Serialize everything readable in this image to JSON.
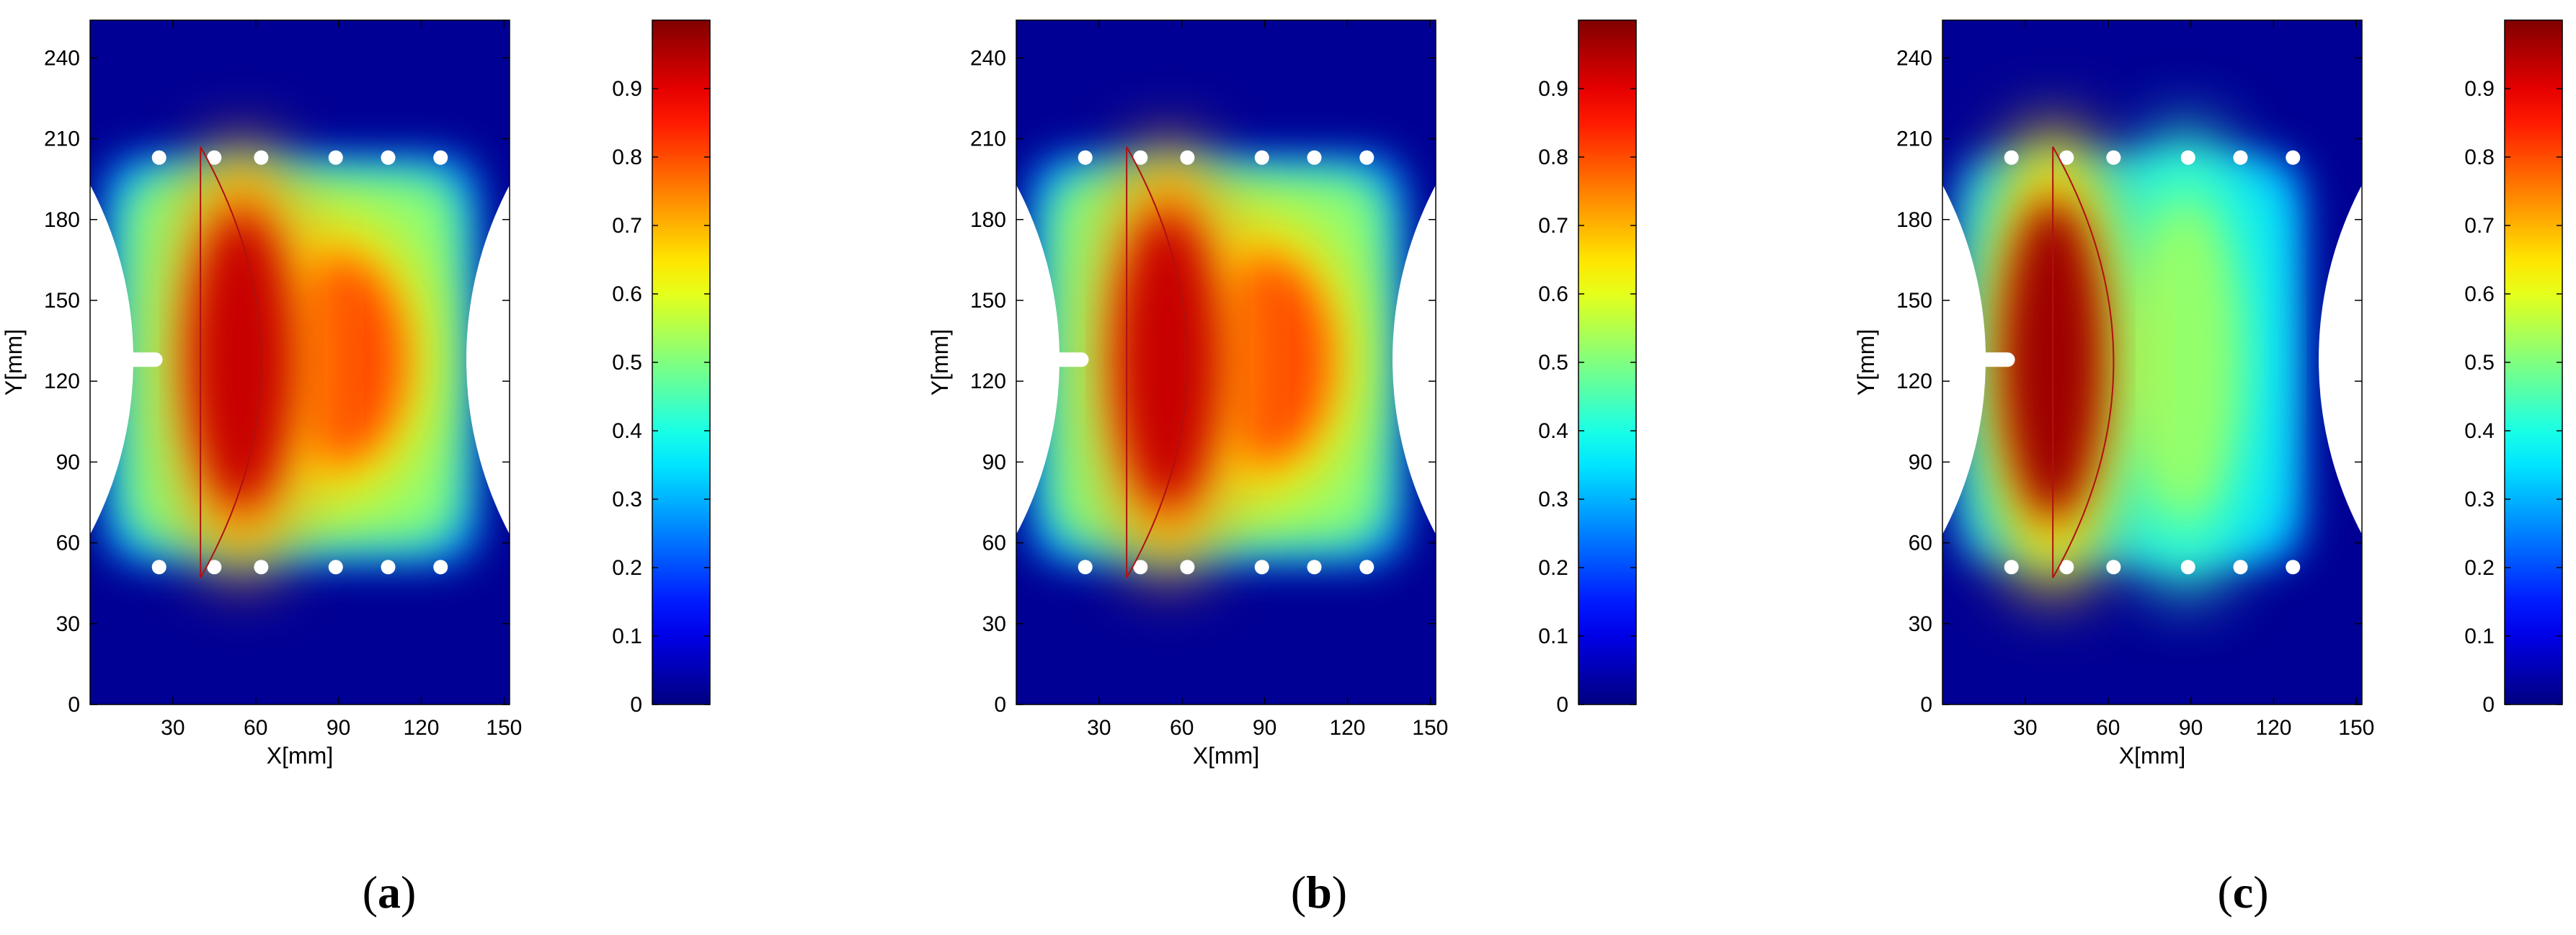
{
  "figure": {
    "panels": [
      {
        "label": "a",
        "chart_data": {
          "type": "heatmap",
          "xlabel": "X[mm]",
          "ylabel": "Y[mm]",
          "xlim": [
            0,
            152
          ],
          "ylim": [
            0,
            254
          ],
          "xticks": [
            30,
            60,
            90,
            120,
            150
          ],
          "yticks": [
            0,
            30,
            60,
            90,
            120,
            150,
            180,
            210,
            240
          ],
          "colorbar": {
            "range": [
              0,
              1
            ],
            "ticks": [
              0,
              0.1,
              0.2,
              0.3,
              0.4,
              0.5,
              0.6,
              0.7,
              0.8,
              0.9
            ],
            "tick_labels": [
              "0",
              "0.1",
              "0.2",
              "0.3",
              "0.4",
              "0.5",
              "0.6",
              "0.7",
              "0.8",
              "0.9"
            ],
            "colormap": "jet"
          },
          "field": {
            "background_value": 0.02,
            "region": {
              "x": [
                8,
                138
              ],
              "y": [
                55,
                201
              ],
              "value": 0.5
            },
            "hotspots": [
              {
                "x": 55,
                "y": 128,
                "rx": 22,
                "ry": 65,
                "value": 0.93
              },
              {
                "x": 90,
                "y": 128,
                "rx": 28,
                "ry": 45,
                "value": 0.8
              }
            ]
          },
          "notch": {
            "x": [
              0,
              35
            ],
            "y": 128
          },
          "bolt_holes_y": [
            51,
            203
          ],
          "bolt_holes_x": [
            25,
            45,
            62,
            89,
            108,
            127
          ],
          "crack_front": {
            "x_start": 40,
            "x_apex": 62,
            "y_range": [
              47,
              207
            ]
          }
        }
      },
      {
        "label": "b",
        "chart_data": {
          "type": "heatmap",
          "xlabel": "X[mm]",
          "ylabel": "Y[mm]",
          "xlim": [
            0,
            152
          ],
          "ylim": [
            0,
            254
          ],
          "xticks": [
            30,
            60,
            90,
            120,
            150
          ],
          "yticks": [
            0,
            30,
            60,
            90,
            120,
            150,
            180,
            210,
            240
          ],
          "colorbar": {
            "range": [
              0,
              1
            ],
            "ticks": [
              0,
              0.1,
              0.2,
              0.3,
              0.4,
              0.5,
              0.6,
              0.7,
              0.8,
              0.9
            ],
            "tick_labels": [
              "0",
              "0.1",
              "0.2",
              "0.3",
              "0.4",
              "0.5",
              "0.6",
              "0.7",
              "0.8",
              "0.9"
            ],
            "colormap": "jet"
          },
          "field": {
            "background_value": 0.02,
            "region": {
              "x": [
                8,
                138
              ],
              "y": [
                55,
                201
              ],
              "value": 0.5
            },
            "hotspots": [
              {
                "x": 55,
                "y": 128,
                "rx": 22,
                "ry": 65,
                "value": 0.93
              },
              {
                "x": 90,
                "y": 128,
                "rx": 28,
                "ry": 45,
                "value": 0.8
              }
            ]
          },
          "notch": {
            "x": [
              0,
              35
            ],
            "y": 128
          },
          "bolt_holes_y": [
            51,
            203
          ],
          "bolt_holes_x": [
            25,
            45,
            62,
            89,
            108,
            127
          ],
          "crack_front": {
            "x_start": 40,
            "x_apex": 62,
            "y_range": [
              47,
              207
            ]
          }
        }
      },
      {
        "label": "c",
        "chart_data": {
          "type": "heatmap",
          "xlabel": "X[mm]",
          "ylabel": "Y[mm]",
          "xlim": [
            0,
            152
          ],
          "ylim": [
            0,
            254
          ],
          "xticks": [
            30,
            60,
            90,
            120,
            150
          ],
          "yticks": [
            0,
            30,
            60,
            90,
            120,
            150,
            180,
            210,
            240
          ],
          "colorbar": {
            "range": [
              0,
              1
            ],
            "ticks": [
              0,
              0.1,
              0.2,
              0.3,
              0.4,
              0.5,
              0.6,
              0.7,
              0.8,
              0.9
            ],
            "tick_labels": [
              "0",
              "0.1",
              "0.2",
              "0.3",
              "0.4",
              "0.5",
              "0.6",
              "0.7",
              "0.8",
              "0.9"
            ],
            "colormap": "jet"
          },
          "field": {
            "background_value": 0.02,
            "region": {
              "x": [
                8,
                128
              ],
              "y": [
                55,
                201
              ],
              "value": 0.35
            },
            "hotspots": [
              {
                "x": 40,
                "y": 128,
                "rx": 22,
                "ry": 70,
                "value": 0.97
              },
              {
                "x": 88,
                "y": 128,
                "rx": 22,
                "ry": 70,
                "value": 0.52
              }
            ]
          },
          "notch": {
            "x": [
              0,
              35
            ],
            "y": 128
          },
          "bolt_holes_y": [
            51,
            203
          ],
          "bolt_holes_x": [
            25,
            45,
            62,
            89,
            108,
            127
          ],
          "crack_front": {
            "x_start": 40,
            "x_apex": 62,
            "y_range": [
              47,
              207
            ]
          }
        }
      }
    ]
  }
}
